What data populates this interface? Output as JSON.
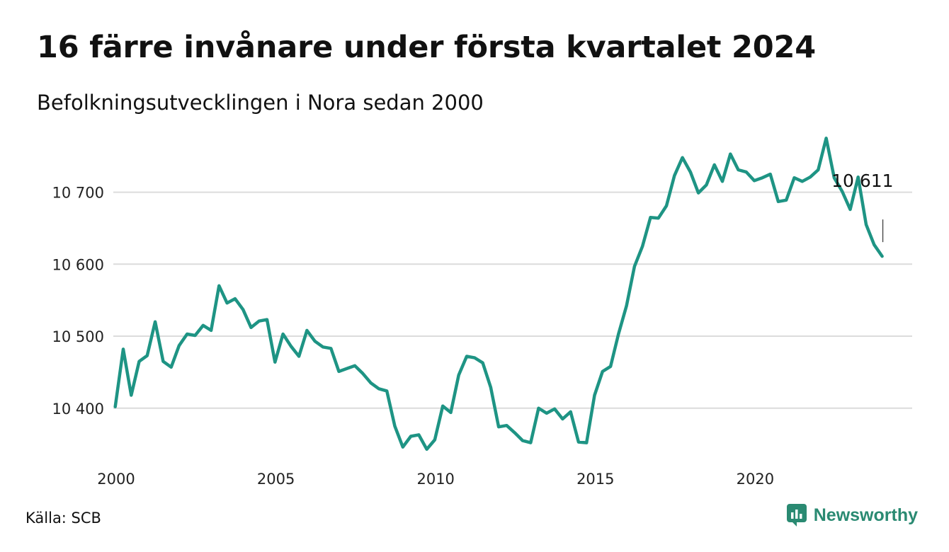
{
  "title": "16 färre invånare under första kvartalet 2024",
  "subtitle": "Befolkningsutvecklingen i Nora sedan 2000",
  "source": "Källa: SCB",
  "brand": {
    "name": "Newsworthy",
    "icon": "newsworthy-logo-icon",
    "color": "#2a8a72"
  },
  "chart_data": {
    "type": "line",
    "title": "16 färre invånare under första kvartalet 2024",
    "subtitle": "Befolkningsutvecklingen i Nora sedan 2000",
    "x_unit": "year (quarterly observations)",
    "xlim": [
      2000,
      2025
    ],
    "ylim": [
      10330,
      10790
    ],
    "x_ticks": [
      2000,
      2005,
      2010,
      2015,
      2020
    ],
    "x_tick_labels": [
      "2000",
      "2005",
      "2010",
      "2015",
      "2020"
    ],
    "y_ticks": [
      10400,
      10500,
      10600,
      10700
    ],
    "y_tick_labels": [
      "10 400",
      "10 500",
      "10 600",
      "10 700"
    ],
    "grid": "horizontal",
    "line_color": "#1e9484",
    "series": [
      {
        "start_year": 2000,
        "points_per_year": 4,
        "values": [
          10402,
          10482,
          10418,
          10465,
          10473,
          10520,
          10465,
          10457,
          10487,
          10503,
          10501,
          10515,
          10508,
          10570,
          10546,
          10552,
          10537,
          10512,
          10521,
          10523,
          10464,
          10503,
          10486,
          10472,
          10508,
          10493,
          10485,
          10483,
          10451,
          10455,
          10459,
          10448,
          10435,
          10427,
          10424,
          10375,
          10346,
          10361,
          10363,
          10343,
          10356,
          10403,
          10394,
          10446,
          10472,
          10470,
          10463,
          10429,
          10374,
          10376,
          10366,
          10355,
          10352,
          10400,
          10393,
          10399,
          10385,
          10395,
          10353,
          10352,
          10418,
          10451,
          10458,
          10503,
          10542,
          10597,
          10625,
          10665,
          10664,
          10681,
          10723,
          10748,
          10728,
          10699,
          10710,
          10738,
          10715,
          10753,
          10731,
          10728,
          10716,
          10720,
          10725,
          10687,
          10689,
          10720,
          10715,
          10721,
          10731,
          10775,
          10720,
          10701,
          10676,
          10721,
          10655,
          10627,
          10611
        ]
      }
    ],
    "last_value_label": "10 611"
  }
}
